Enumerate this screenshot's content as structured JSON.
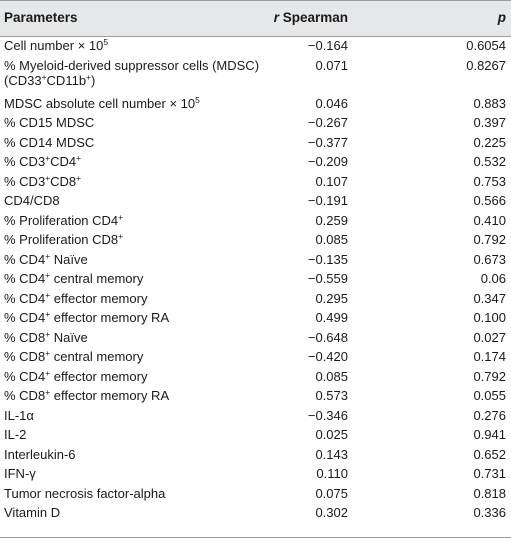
{
  "header": {
    "parameters": "Parameters",
    "r_italic": "r",
    "r_rest": " Spearman",
    "p": "p"
  },
  "rows": [
    {
      "name": "Cell number × 10",
      "sup": "5",
      "r": "−0.164",
      "p": "0.6054"
    },
    {
      "name": "% Myeloid-derived suppressor cells (MDSC)",
      "line2a": "(CD33",
      "sup2a": "+",
      "line2b": "CD11b",
      "sup2b": "+",
      "line2c": ")",
      "r": "0.071",
      "p": "0.8267"
    },
    {
      "name": "MDSC absolute cell number × 10",
      "sup": "5",
      "r": "0.046",
      "p": "0.883"
    },
    {
      "name": "% CD15 MDSC",
      "r": "−0.267",
      "p": "0.397"
    },
    {
      "name": "% CD14 MDSC",
      "r": "−0.377",
      "p": "0.225"
    },
    {
      "name": "% CD3",
      "sup": "+",
      "after": "CD4",
      "sup2": "+",
      "r": "−0.209",
      "p": "0.532"
    },
    {
      "name": "% CD3",
      "sup": "+",
      "after": "CD8",
      "sup2": "+",
      "r": "0.107",
      "p": "0.753"
    },
    {
      "name": "CD4/CD8",
      "r": "−0.191",
      "p": "0.566"
    },
    {
      "name": "% Proliferation CD4",
      "sup": "+",
      "r": "0.259",
      "p": "0.410"
    },
    {
      "name": "% Proliferation CD8",
      "sup": "+",
      "r": "0.085",
      "p": "0.792"
    },
    {
      "name": "% CD4",
      "sup": "+",
      "after": " Naïve",
      "r": "−0.135",
      "p": "0.673"
    },
    {
      "name": "% CD4",
      "sup": "+",
      "after": " central memory",
      "r": "−0.559",
      "p": "0.06"
    },
    {
      "name": "% CD4",
      "sup": "+",
      "after": " effector memory",
      "r": "0.295",
      "p": "0.347"
    },
    {
      "name": "% CD4",
      "sup": "+",
      "after": " effector memory RA",
      "r": "0.499",
      "p": "0.100"
    },
    {
      "name": "% CD8",
      "sup": "+",
      "after": " Naïve",
      "r": "−0.648",
      "p": "0.027"
    },
    {
      "name": "% CD8",
      "sup": "+",
      "after": " central memory",
      "r": "−0.420",
      "p": "0.174"
    },
    {
      "name": "% CD4",
      "sup": "+",
      "after": " effector memory",
      "r": "0.085",
      "p": "0.792"
    },
    {
      "name": "% CD8",
      "sup": "+",
      "after": " effector memory RA",
      "r": "0.573",
      "p": "0.055"
    },
    {
      "name": "IL-1α",
      "r": "−0.346",
      "p": "0.276"
    },
    {
      "name": "IL-2",
      "r": "0.025",
      "p": "0.941"
    },
    {
      "name": "Interleukin-6",
      "r": "0.143",
      "p": "0.652"
    },
    {
      "name": "IFN-γ",
      "r": "0.110",
      "p": "0.731"
    },
    {
      "name": "Tumor necrosis factor-alpha",
      "r": "0.075",
      "p": "0.818"
    },
    {
      "name": "Vitamin D",
      "r": "0.302",
      "p": "0.336"
    }
  ]
}
